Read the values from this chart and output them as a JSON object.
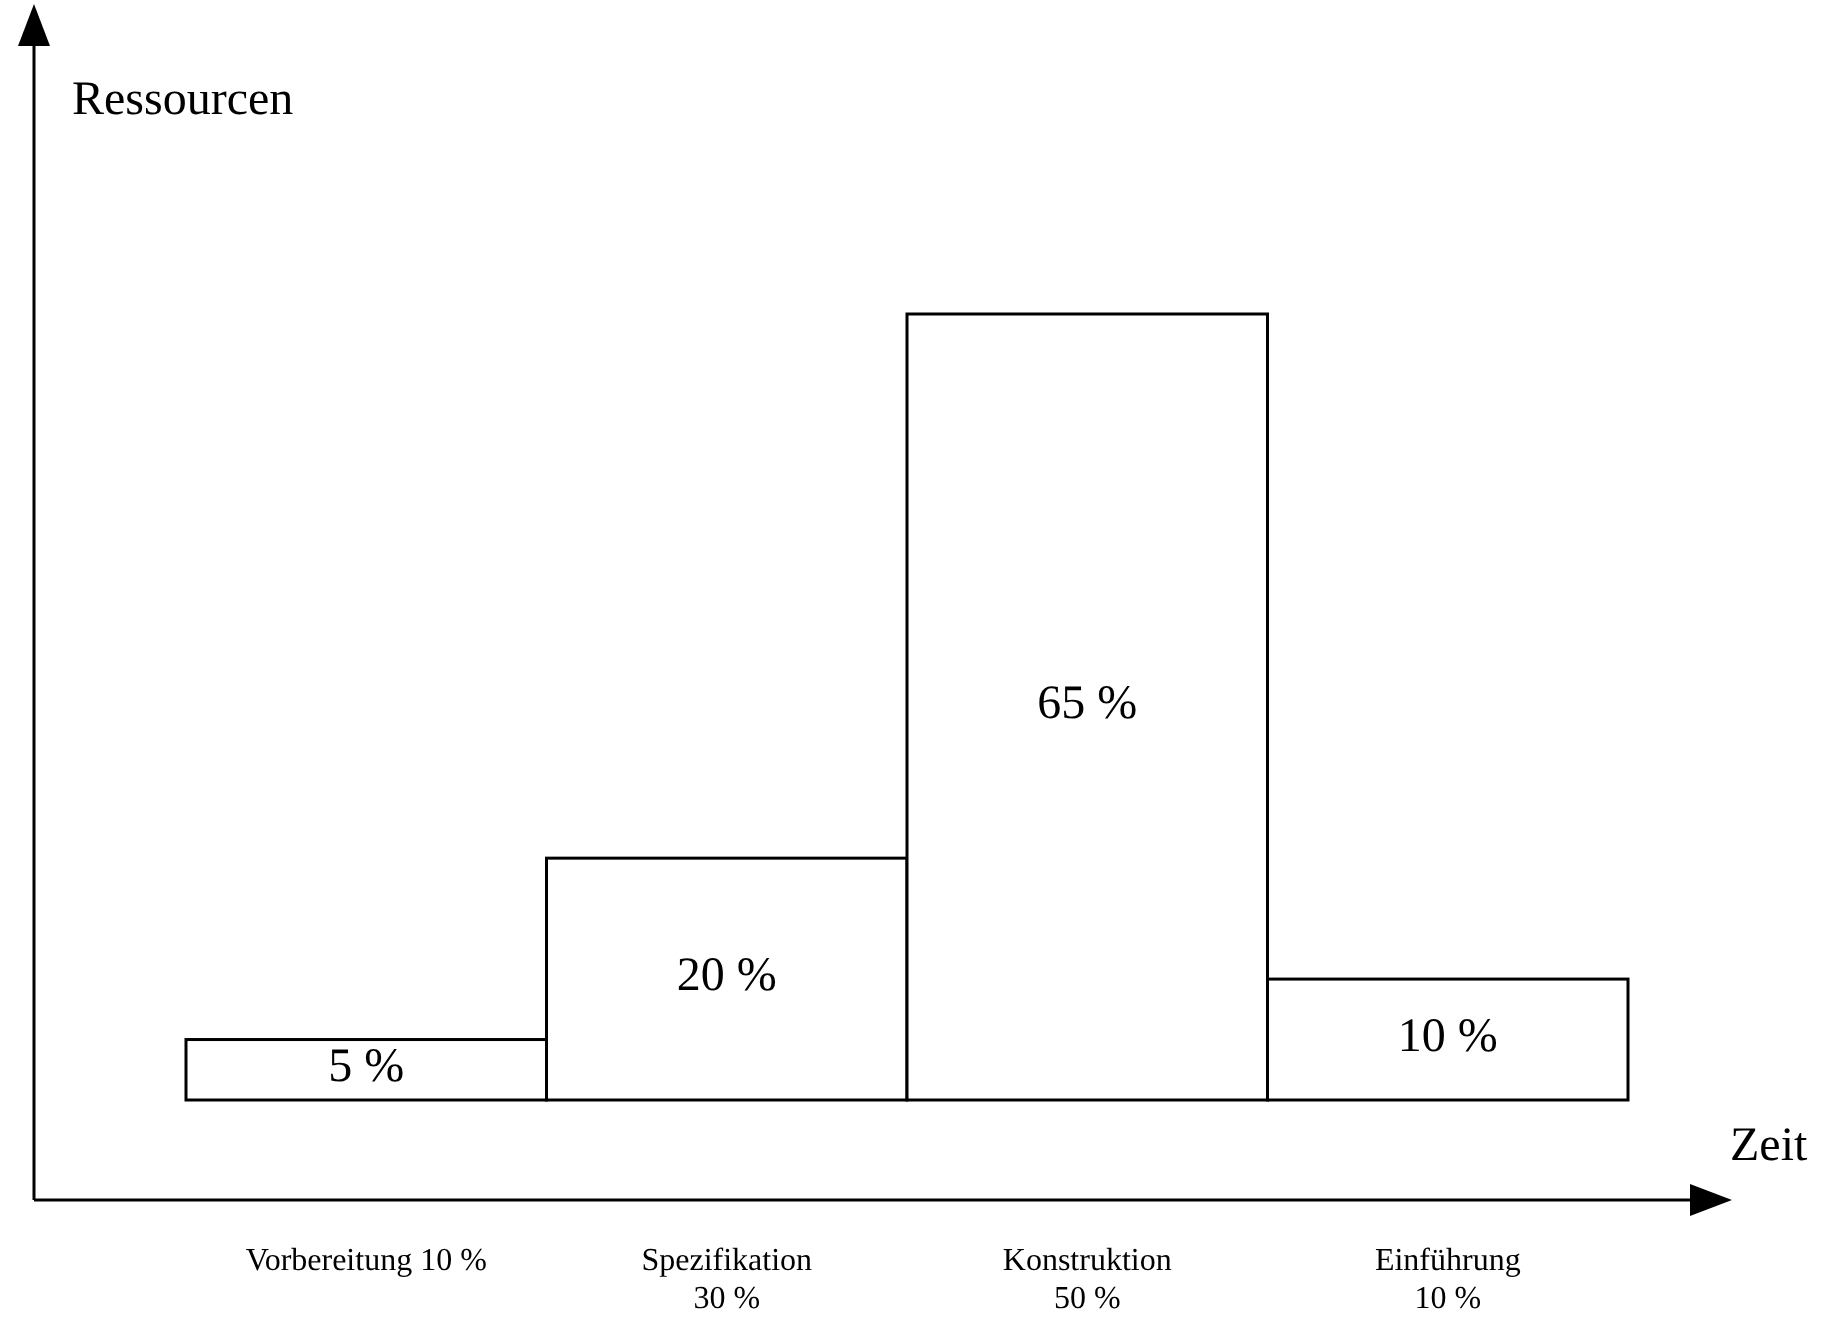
{
  "chart_data": {
    "type": "bar",
    "xlabel": "Zeit",
    "ylabel": "Ressourcen",
    "categories": [
      "Vorbereitung 10 %",
      "Spezifikation\n30 %",
      "Konstruktion\n50 %",
      "Einführung\n10 %"
    ],
    "values": [
      5,
      20,
      65,
      10
    ],
    "value_labels": [
      "5 %",
      "20 %",
      "65 %",
      "10 %"
    ],
    "color": "#ffffff"
  }
}
